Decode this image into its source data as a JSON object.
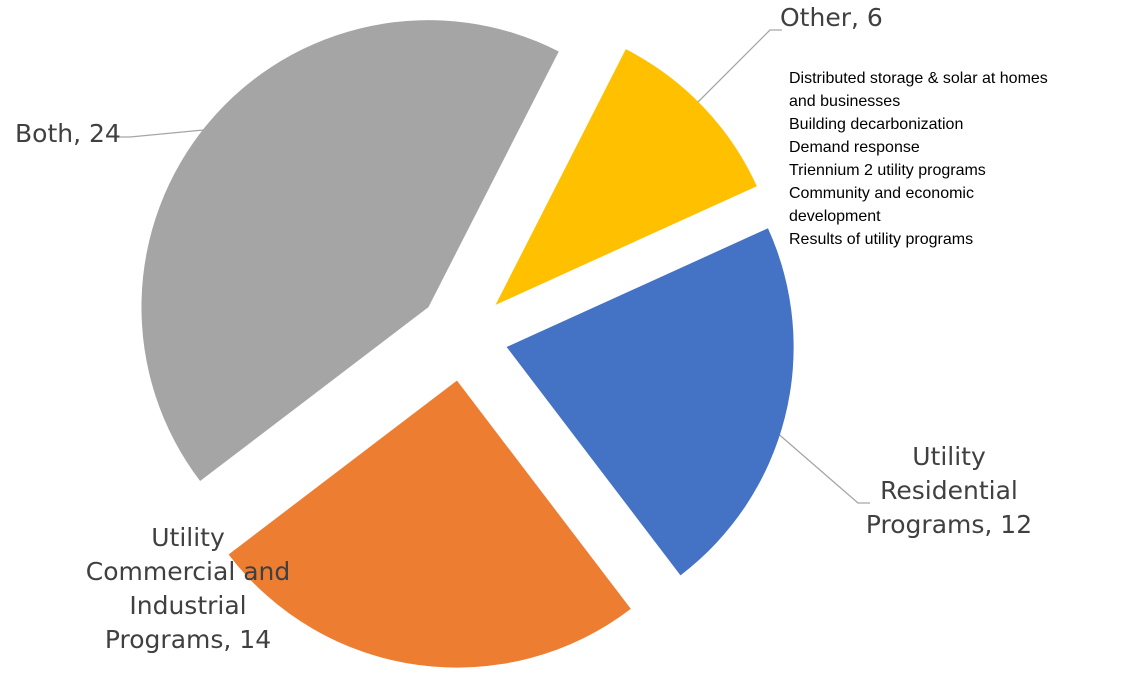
{
  "chart_data": {
    "type": "pie",
    "exploded": true,
    "slices": [
      {
        "category": "Other",
        "value": 6,
        "color": "#FFC000",
        "label_lines": [
          "Other, 6"
        ]
      },
      {
        "category": "Utility Residential Programs",
        "value": 12,
        "color": "#4472C4",
        "label_lines": [
          "Utility",
          "Residential",
          "Programs, 12"
        ]
      },
      {
        "category": "Utility Commercial and Industrial Programs",
        "value": 14,
        "color": "#ED7D31",
        "label_lines": [
          "Utility",
          "Commercial and",
          "Industrial",
          "Programs, 14"
        ]
      },
      {
        "category": "Both",
        "value": 24,
        "color": "#A5A5A5",
        "label_lines": [
          "Both, 24"
        ]
      }
    ],
    "annotation": {
      "attached_to": "Other",
      "items": [
        "Distributed storage & solar at homes\nand businesses",
        "Building decarbonization",
        "Demand response",
        "Triennium 2 utility programs",
        "Community and economic\ndevelopment",
        "Results of utility programs"
      ]
    },
    "leader_line_color": "#A6A6A6"
  }
}
